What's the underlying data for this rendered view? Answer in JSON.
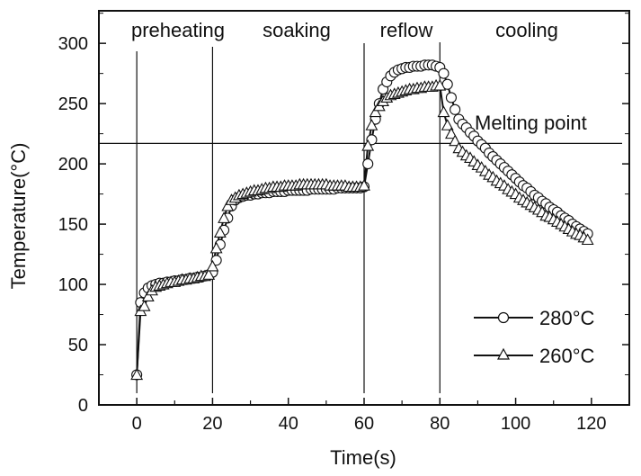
{
  "chart_data": {
    "type": "line",
    "title": "",
    "xlabel": "Time(s)",
    "ylabel": "Temperature(°C)",
    "xlim": [
      -10,
      130
    ],
    "ylim": [
      0,
      327
    ],
    "xticks": [
      0,
      20,
      40,
      60,
      80,
      100,
      120
    ],
    "yticks": [
      0,
      50,
      100,
      150,
      200,
      250,
      300
    ],
    "grid": false,
    "legend_placement": "bottom-right",
    "phase_boundaries": [
      0,
      20,
      60,
      80
    ],
    "phase_labels": [
      "preheating",
      "soaking",
      "reflow",
      "cooling"
    ],
    "melting_point": {
      "label": "Melting point",
      "y": 217
    },
    "x": [
      0,
      1,
      2,
      3,
      4,
      5,
      6,
      7,
      8,
      9,
      10,
      11,
      12,
      13,
      14,
      15,
      16,
      17,
      18,
      19,
      20,
      21,
      22,
      23,
      24,
      25,
      26,
      27,
      28,
      29,
      30,
      31,
      32,
      33,
      34,
      35,
      36,
      37,
      38,
      39,
      40,
      41,
      42,
      43,
      44,
      45,
      46,
      47,
      48,
      49,
      50,
      51,
      52,
      53,
      54,
      55,
      56,
      57,
      58,
      59,
      60,
      61,
      62,
      63,
      64,
      65,
      66,
      67,
      68,
      69,
      70,
      71,
      72,
      73,
      74,
      75,
      76,
      77,
      78,
      79,
      80,
      81,
      82,
      83,
      84,
      85,
      86,
      87,
      88,
      89,
      90,
      91,
      92,
      93,
      94,
      95,
      96,
      97,
      98,
      99,
      100,
      101,
      102,
      103,
      104,
      105,
      106,
      107,
      108,
      109,
      110,
      111,
      112,
      113,
      114,
      115,
      116,
      117,
      118,
      119
    ],
    "series": [
      {
        "name": "280°C",
        "marker": "circle",
        "values": [
          25,
          85,
          93,
          97,
          99,
          100,
          101,
          101,
          102,
          102,
          103,
          103,
          104,
          104,
          105,
          105,
          106,
          106,
          107,
          108,
          110,
          120,
          133,
          145,
          155,
          165,
          170,
          172,
          173,
          174,
          174,
          175,
          175,
          176,
          176,
          176,
          177,
          177,
          177,
          177,
          178,
          178,
          178,
          178,
          178,
          178,
          179,
          179,
          179,
          179,
          179,
          179,
          179,
          180,
          180,
          180,
          180,
          180,
          180,
          180,
          181,
          200,
          220,
          237,
          250,
          262,
          268,
          273,
          276,
          278,
          279,
          280,
          280,
          281,
          281,
          281,
          282,
          282,
          282,
          281,
          280,
          275,
          266,
          255,
          245,
          237,
          233,
          230,
          226,
          223,
          219,
          216,
          213,
          209,
          206,
          203,
          200,
          197,
          194,
          191,
          188,
          185,
          182,
          180,
          177,
          174,
          172,
          169,
          167,
          164,
          162,
          160,
          157,
          155,
          153,
          150,
          148,
          146,
          144,
          142
        ]
      },
      {
        "name": "260°C",
        "marker": "triangle",
        "values": [
          25,
          78,
          82,
          90,
          95,
          98,
          99,
          100,
          101,
          102,
          102,
          103,
          104,
          104,
          105,
          105,
          106,
          107,
          107,
          108,
          115,
          130,
          143,
          155,
          165,
          170,
          172,
          174,
          175,
          176,
          177,
          178,
          178,
          179,
          180,
          180,
          181,
          181,
          181,
          182,
          182,
          182,
          182,
          183,
          183,
          183,
          183,
          183,
          183,
          183,
          183,
          182,
          182,
          182,
          182,
          182,
          181,
          181,
          181,
          181,
          182,
          215,
          232,
          243,
          248,
          252,
          255,
          257,
          258,
          259,
          260,
          261,
          262,
          262,
          263,
          263,
          264,
          264,
          264,
          265,
          265,
          243,
          232,
          225,
          219,
          213,
          210,
          207,
          205,
          202,
          199,
          197,
          194,
          191,
          189,
          186,
          184,
          182,
          179,
          177,
          175,
          172,
          170,
          168,
          166,
          164,
          162,
          160,
          157,
          156,
          154,
          152,
          150,
          148,
          146,
          144,
          142,
          141,
          139,
          137
        ]
      }
    ],
    "colors": {
      "line": "#111111",
      "marker_fill": "#ffffff"
    }
  }
}
